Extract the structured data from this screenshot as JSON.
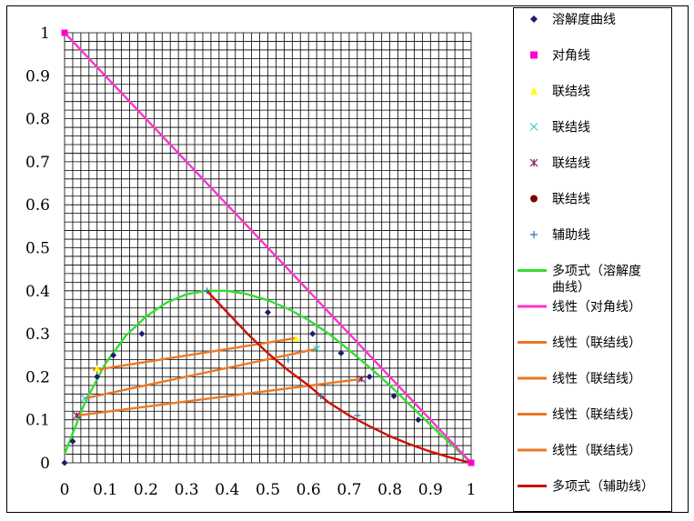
{
  "chart_data": {
    "type": "scatter",
    "title": "",
    "xlabel": "",
    "ylabel": "",
    "xlim": [
      0,
      1
    ],
    "ylim": [
      0,
      1
    ],
    "grid": true,
    "grid_minor_step": 0.02,
    "legend_placement": "right",
    "x_tick_labels": [
      "0",
      "0.1",
      "0.2",
      "0.3",
      "0.4",
      "0.5",
      "0.6",
      "0.7",
      "0.8",
      "0.9",
      "1"
    ],
    "y_tick_labels": [
      "0",
      "0.1",
      "0.2",
      "0.3",
      "0.4",
      "0.5",
      "0.6",
      "0.7",
      "0.8",
      "0.9",
      "1"
    ],
    "series": [
      {
        "name": "溶解度曲线",
        "kind": "points",
        "marker": "diamond",
        "color": "#1b1b6e",
        "x": [
          0.0,
          0.02,
          0.08,
          0.12,
          0.19,
          0.5,
          0.61,
          0.68,
          0.75,
          0.81,
          0.87,
          1.0
        ],
        "y": [
          0.0,
          0.05,
          0.2,
          0.25,
          0.3,
          0.35,
          0.3,
          0.255,
          0.2,
          0.155,
          0.1,
          0.0
        ]
      },
      {
        "name": "对角线",
        "kind": "points",
        "marker": "square",
        "color": "#ff00cc",
        "x": [
          0.0,
          1.0
        ],
        "y": [
          1.0,
          0.0
        ]
      },
      {
        "name": "联结线",
        "kind": "points",
        "marker": "triangle",
        "color": "#ffff00",
        "x": [
          0.08,
          0.57
        ],
        "y": [
          0.22,
          0.29
        ]
      },
      {
        "name": "联结线",
        "kind": "points",
        "marker": "x",
        "color": "#33cccc",
        "x": [
          0.05,
          0.62
        ],
        "y": [
          0.15,
          0.265
        ]
      },
      {
        "name": "联结线",
        "kind": "points",
        "marker": "asterisk",
        "color": "#7f1f5f",
        "x": [
          0.03,
          0.73
        ],
        "y": [
          0.11,
          0.195
        ]
      },
      {
        "name": "联结线",
        "kind": "points",
        "marker": "circle",
        "color": "#800000",
        "x": [],
        "y": []
      },
      {
        "name": "辅助线",
        "kind": "points",
        "marker": "plus",
        "color": "#3070b0",
        "x": [
          0.35,
          0.55,
          0.63,
          0.72
        ],
        "y": [
          0.4,
          0.24,
          0.155,
          0.11
        ]
      },
      {
        "name": "多项式（溶解度曲线）",
        "kind": "poly",
        "color": "#33dd33",
        "x": [
          0.0,
          0.05,
          0.1,
          0.15,
          0.2,
          0.25,
          0.3,
          0.35,
          0.4,
          0.45,
          0.5,
          0.55,
          0.6,
          0.65,
          0.7,
          0.75,
          0.8,
          0.85,
          0.9,
          0.95,
          1.0
        ],
        "y": [
          0.02,
          0.14,
          0.23,
          0.295,
          0.34,
          0.372,
          0.392,
          0.4,
          0.4,
          0.392,
          0.378,
          0.358,
          0.332,
          0.3,
          0.262,
          0.222,
          0.18,
          0.134,
          0.088,
          0.044,
          0.0
        ]
      },
      {
        "name": "线性（对角线）",
        "kind": "line",
        "color": "#ff33cc",
        "x": [
          0.0,
          1.0
        ],
        "y": [
          1.0,
          0.0
        ]
      },
      {
        "name": "线性（联结线）",
        "kind": "line",
        "color": "#ee7722",
        "x": [
          0.07,
          0.57
        ],
        "y": [
          0.215,
          0.29
        ]
      },
      {
        "name": "线性（联结线）",
        "kind": "line",
        "color": "#ee7722",
        "x": [
          0.05,
          0.62
        ],
        "y": [
          0.15,
          0.265
        ]
      },
      {
        "name": "线性（联结线）",
        "kind": "line",
        "color": "#ee7722",
        "x": [
          0.03,
          0.73
        ],
        "y": [
          0.11,
          0.195
        ]
      },
      {
        "name": "线性（联结线）",
        "kind": "line",
        "color": "#ee7722",
        "x": [],
        "y": []
      },
      {
        "name": "多项式（辅助线）",
        "kind": "poly",
        "color": "#cc1100",
        "x": [
          0.35,
          0.4,
          0.45,
          0.5,
          0.55,
          0.6,
          0.65,
          0.7,
          0.75,
          0.8,
          0.85,
          0.9,
          0.95,
          1.0
        ],
        "y": [
          0.4,
          0.35,
          0.3,
          0.255,
          0.215,
          0.18,
          0.14,
          0.11,
          0.085,
          0.062,
          0.043,
          0.026,
          0.012,
          0.0
        ]
      }
    ],
    "legend_entries": [
      {
        "label": "溶解度曲线",
        "symbol": "diamond",
        "color": "#1b1b6e"
      },
      {
        "label": "对角线",
        "symbol": "square",
        "color": "#ff00cc"
      },
      {
        "label": "联结线",
        "symbol": "triangle",
        "color": "#ffff00"
      },
      {
        "label": "联结线",
        "symbol": "x",
        "color": "#33cccc"
      },
      {
        "label": "联结线",
        "symbol": "asterisk",
        "color": "#7f1f5f"
      },
      {
        "label": "联结线",
        "symbol": "circle",
        "color": "#800000"
      },
      {
        "label": "辅助线",
        "symbol": "plus",
        "color": "#3070b0"
      },
      {
        "label": "多项式（溶解度",
        "label2": "曲线）",
        "symbol": "line",
        "color": "#33dd33"
      },
      {
        "label": "线性（对角线）",
        "symbol": "line",
        "color": "#ff33cc"
      },
      {
        "label": "线性（联结线）",
        "symbol": "line",
        "color": "#ee7722"
      },
      {
        "label": "线性（联结线）",
        "symbol": "line",
        "color": "#ee7722"
      },
      {
        "label": "线性（联结线）",
        "symbol": "line",
        "color": "#ee7722"
      },
      {
        "label": "线性（联结线）",
        "symbol": "line",
        "color": "#ee7722"
      },
      {
        "label": "多项式（辅助线）",
        "symbol": "line",
        "color": "#cc1100"
      }
    ]
  }
}
